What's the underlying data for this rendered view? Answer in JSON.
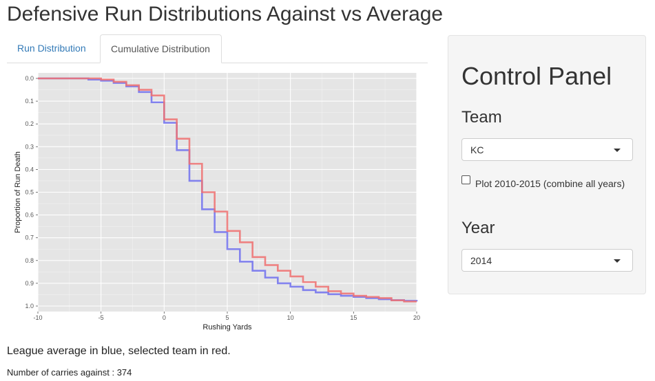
{
  "page": {
    "title": "Defensive Run Distributions Against vs Average"
  },
  "tabs": [
    {
      "label": "Run Distribution",
      "active": false
    },
    {
      "label": "Cumulative Distribution",
      "active": true
    }
  ],
  "caption": "League average in blue, selected team in red.",
  "carries": {
    "label": "Number of carries against :",
    "value": "374"
  },
  "control_panel": {
    "title": "Control Panel",
    "team_label": "Team",
    "team_value": "KC",
    "combine_label": "Plot 2010-2015 (combine all years)",
    "combine_checked": false,
    "year_label": "Year",
    "year_value": "2014"
  },
  "chart_data": {
    "type": "line",
    "step": true,
    "xlabel": "Rushing Yards",
    "ylabel": "Proportion of Run Death",
    "xlim": [
      -10,
      20
    ],
    "ylim": [
      0,
      1
    ],
    "y_reversed": true,
    "xticks": [
      "-10",
      "-5",
      "0",
      "5",
      "10",
      "15",
      "20"
    ],
    "yticks": [
      "0.0",
      "0.1",
      "0.2",
      "0.3",
      "0.4",
      "0.5",
      "0.6",
      "0.7",
      "0.8",
      "0.9",
      "1.0"
    ],
    "grid": true,
    "legend": "none",
    "series": [
      {
        "color": "#7070ee",
        "x": [
          -10,
          -6,
          -5,
          -4,
          -3,
          -2,
          -1,
          0,
          1,
          2,
          3,
          4,
          5,
          6,
          7,
          8,
          9,
          10,
          11,
          12,
          13,
          14,
          15,
          16,
          17,
          18,
          19,
          20
        ],
        "y": [
          0.0,
          0.005,
          0.01,
          0.02,
          0.035,
          0.06,
          0.105,
          0.195,
          0.315,
          0.45,
          0.575,
          0.675,
          0.75,
          0.805,
          0.845,
          0.875,
          0.9,
          0.915,
          0.93,
          0.94,
          0.948,
          0.955,
          0.96,
          0.965,
          0.97,
          0.974,
          0.977,
          0.98
        ]
      },
      {
        "color": "#f07070",
        "x": [
          -10,
          -6,
          -5,
          -4,
          -3,
          -2,
          -1,
          0,
          1,
          2,
          3,
          4,
          5,
          6,
          7,
          8,
          9,
          10,
          11,
          12,
          13,
          14,
          15,
          16,
          17,
          18,
          19,
          20
        ],
        "y": [
          0.0,
          0.0,
          0.005,
          0.015,
          0.03,
          0.05,
          0.075,
          0.18,
          0.265,
          0.375,
          0.5,
          0.585,
          0.67,
          0.72,
          0.785,
          0.82,
          0.845,
          0.87,
          0.895,
          0.915,
          0.935,
          0.945,
          0.955,
          0.96,
          0.965,
          0.975,
          0.98,
          0.98
        ]
      }
    ]
  }
}
